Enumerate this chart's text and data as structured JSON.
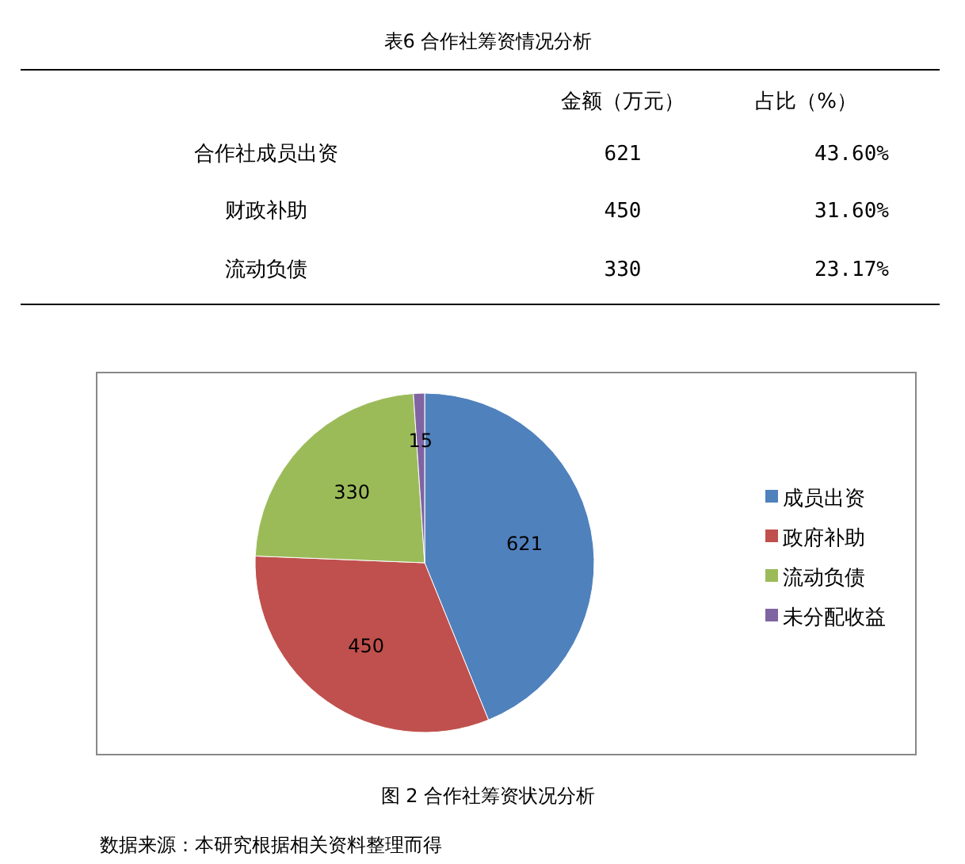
{
  "chart_data": [
    {
      "type": "other",
      "title": "表6 合作社筹资情况分析",
      "data_labels": true,
      "categories": [
        "合作社成员出资",
        "财政补助",
        "流动负债"
      ],
      "series": [
        {
          "name": "金额（万元）",
          "values": [
            621,
            450,
            330
          ]
        },
        {
          "name": "占比（%）",
          "values": [
            43.6,
            31.6,
            23.17
          ],
          "value_labels": [
            "43.60%",
            "31.60%",
            "23.17%"
          ]
        }
      ]
    },
    {
      "type": "pie",
      "title": "图 2 合作社筹资状况分析",
      "categories": [
        "成员出资",
        "政府补助",
        "流动负债",
        "未分配收益"
      ],
      "values": [
        621,
        450,
        330,
        15
      ],
      "colors": [
        "#4f81bd",
        "#c0504d",
        "#9bbb59",
        "#8064a2"
      ],
      "data_labels": true,
      "legend": "right",
      "annotations": [
        "数据来源：本研究根据相关资料整理而得"
      ]
    }
  ]
}
